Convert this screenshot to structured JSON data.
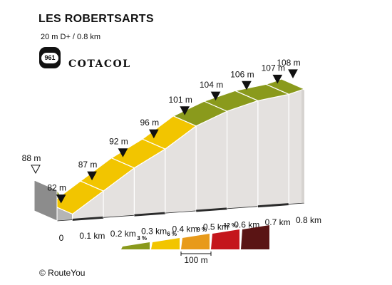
{
  "header": {
    "title": "LES ROBERTSARTS",
    "subtitle": "20 m D+ / 0.8 km",
    "badge_number": "961",
    "brand": "COTACOL"
  },
  "footer": {
    "copyright": "© RouteYou"
  },
  "chart_data": {
    "type": "area",
    "title": "LES ROBERTSARTS",
    "x": [
      0,
      0.1,
      0.2,
      0.3,
      0.4,
      0.5,
      0.6,
      0.7,
      0.8
    ],
    "x_tick_labels": [
      "0",
      "0.1 km",
      "0.2 km",
      "0.3 km",
      "0.4 km",
      "0.5 km",
      "0.6 km",
      "0.7 km",
      "0.8 km"
    ],
    "altitude_points": [
      {
        "x": 0.0,
        "y": 88,
        "label": "88 m"
      },
      {
        "x": 0.05,
        "y": 82,
        "label": "82 m"
      },
      {
        "x": 0.15,
        "y": 87,
        "label": "87 m"
      },
      {
        "x": 0.25,
        "y": 92,
        "label": "92 m"
      },
      {
        "x": 0.35,
        "y": 96,
        "label": "96 m"
      },
      {
        "x": 0.45,
        "y": 101,
        "label": "101 m"
      },
      {
        "x": 0.55,
        "y": 104,
        "label": "104 m"
      },
      {
        "x": 0.65,
        "y": 106,
        "label": "106 m"
      },
      {
        "x": 0.75,
        "y": 107,
        "label": "107 m"
      },
      {
        "x": 0.8,
        "y": 108,
        "label": "108 m"
      }
    ],
    "segment_colors": [
      "#8a9a1c",
      "#f2c500",
      "#f2c500",
      "#f2c500",
      "#f2c500",
      "#8a9a1c",
      "#8a9a1c",
      "#8a9a1c",
      "#8a9a1c"
    ],
    "legend": {
      "items": [
        {
          "label": "3 %",
          "color": "#8a9a1c"
        },
        {
          "label": "6 %",
          "color": "#f2c500"
        },
        {
          "label": "9 %",
          "color": "#e89a1a"
        },
        {
          "label": "12 %",
          "color": "#c4161c"
        },
        {
          "label": "",
          "color": "#5a1414"
        }
      ],
      "scale_label": "100 m"
    }
  }
}
